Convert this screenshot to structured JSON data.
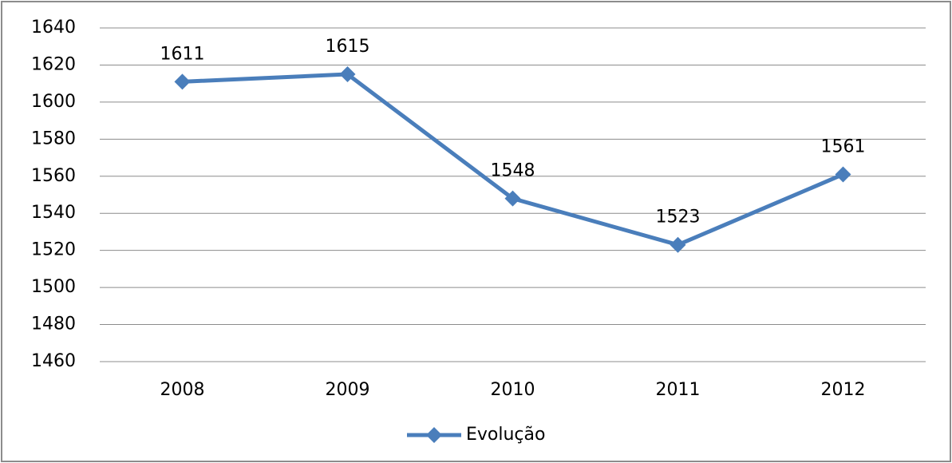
{
  "chart_data": {
    "type": "line",
    "categories": [
      "2008",
      "2009",
      "2010",
      "2011",
      "2012"
    ],
    "series": [
      {
        "name": "Evolução",
        "color": "#4a7ebb",
        "values": [
          1611,
          1615,
          1548,
          1523,
          1561
        ]
      }
    ],
    "ylim": [
      1460,
      1640
    ],
    "yticks": [
      1460,
      1480,
      1500,
      1520,
      1540,
      1560,
      1580,
      1600,
      1620,
      1640
    ],
    "grid": true,
    "legend": "bottom",
    "data_labels": true
  }
}
